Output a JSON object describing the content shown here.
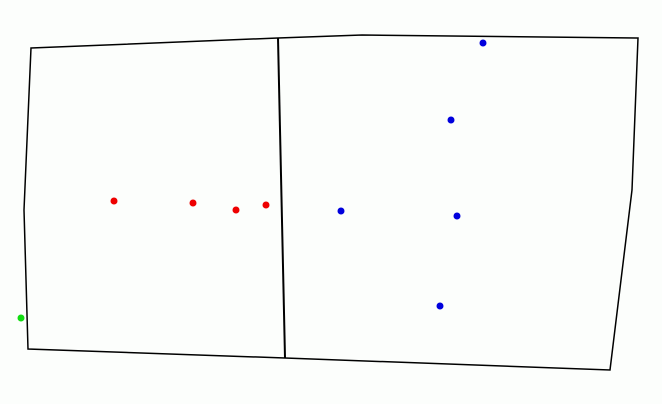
{
  "colors": {
    "background": "#fcfefc",
    "outline": "#000000",
    "red_points": "#ee0000",
    "blue_points": "#0000dd",
    "green_points": "#11dd11"
  },
  "regions": [
    {
      "name": "left-region"
    },
    {
      "name": "right-region"
    }
  ],
  "points": {
    "red_count": 4,
    "blue_count": 5,
    "green_count": 1
  }
}
